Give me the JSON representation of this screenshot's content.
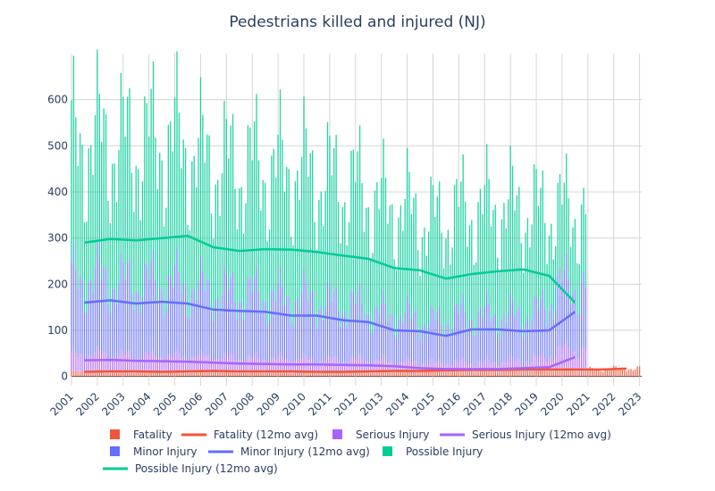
{
  "chart_data": {
    "type": "bar",
    "title": "Pedestrians killed and injured (NJ)",
    "barmode": "stack",
    "x_tick_labels": [
      "2001",
      "2002",
      "2003",
      "2004",
      "2005",
      "2006",
      "2007",
      "2008",
      "2009",
      "2010",
      "2011",
      "2012",
      "2013",
      "2014",
      "2015",
      "2016",
      "2017",
      "2018",
      "2019",
      "2020",
      "2021",
      "2022",
      "2023"
    ],
    "y_tick_labels": [
      "0",
      "100",
      "200",
      "300",
      "400",
      "500",
      "600"
    ],
    "ylim": [
      -20,
      700
    ],
    "xlim": [
      "2001-01",
      "2023-02"
    ],
    "grid": true,
    "legend_position": "bottom",
    "legend": [
      {
        "name": "Fatality",
        "kind": "bar",
        "color": "#ef553b"
      },
      {
        "name": "Fatality (12mo avg)",
        "kind": "line",
        "color": "#ef553b"
      },
      {
        "name": "Serious Injury",
        "kind": "bar",
        "color": "#ab63fa"
      },
      {
        "name": "Serious Injury (12mo avg)",
        "kind": "line",
        "color": "#ab63fa"
      },
      {
        "name": "Minor Injury",
        "kind": "bar",
        "color": "#636efa"
      },
      {
        "name": "Minor Injury (12mo avg)",
        "kind": "line",
        "color": "#636efa"
      },
      {
        "name": "Possible Injury",
        "kind": "bar",
        "color": "#00cc96"
      },
      {
        "name": "Possible Injury (12mo avg)",
        "kind": "line",
        "color": "#00cc96"
      }
    ],
    "annual_totals": {
      "x": [
        2001,
        2002,
        2003,
        2004,
        2005,
        2006,
        2007,
        2008,
        2009,
        2010,
        2011,
        2012,
        2013,
        2014,
        2015,
        2016,
        2017,
        2018,
        2019,
        2020,
        2021,
        2022
      ],
      "possible_injury_12mo_avg": [
        290,
        298,
        295,
        300,
        305,
        280,
        272,
        276,
        275,
        270,
        262,
        255,
        235,
        230,
        212,
        222,
        228,
        232,
        218,
        160,
        null,
        null
      ],
      "minor_injury_12mo_avg": [
        160,
        165,
        158,
        162,
        158,
        145,
        142,
        140,
        132,
        132,
        122,
        118,
        100,
        98,
        88,
        102,
        102,
        98,
        100,
        140,
        null,
        null
      ],
      "serious_injury_12mo_avg": [
        35,
        36,
        34,
        33,
        32,
        30,
        28,
        27,
        26,
        26,
        25,
        24,
        22,
        18,
        16,
        16,
        16,
        18,
        20,
        42,
        null,
        null
      ],
      "fatality_12mo_avg": [
        10,
        11,
        11,
        10,
        11,
        12,
        11,
        11,
        11,
        10,
        10,
        11,
        12,
        12,
        13,
        14,
        14,
        15,
        15,
        15,
        15,
        17
      ]
    }
  }
}
